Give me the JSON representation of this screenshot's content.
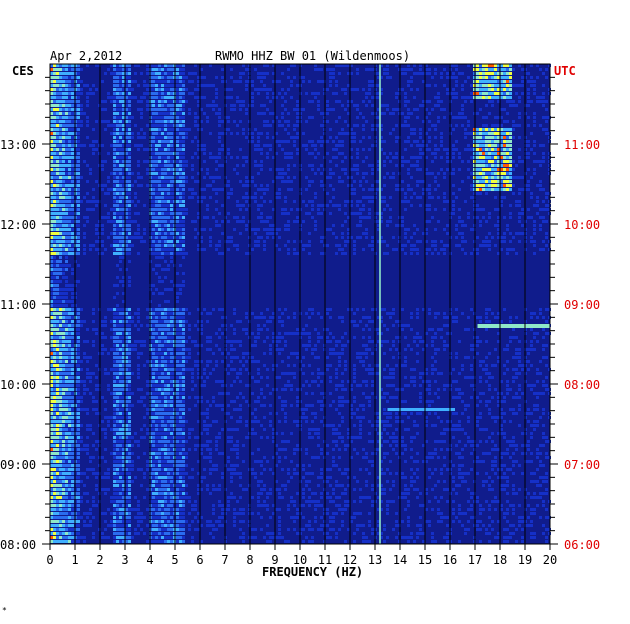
{
  "header": {
    "date": "Apr 2,2012",
    "station": "RWMO HHZ BW 01 (Wildenmoos)",
    "left_tz": "CES",
    "right_tz": "UTC"
  },
  "footer": {
    "mark": "*"
  },
  "chart_data": {
    "type": "heatmap",
    "title": "RWMO HHZ BW 01 (Wildenmoos)",
    "xlabel": "FREQUENCY (HZ)",
    "ylabel": "",
    "xlim": [
      0,
      20
    ],
    "x_ticks": [
      "0",
      "1",
      "2",
      "3",
      "4",
      "5",
      "6",
      "7",
      "8",
      "9",
      "10",
      "11",
      "12",
      "13",
      "14",
      "15",
      "16",
      "17",
      "18",
      "19",
      "20"
    ],
    "y_left_range": [
      "08:00",
      "13:50"
    ],
    "y_left_ticks": [
      "08:00",
      "09:00",
      "10:00",
      "11:00",
      "12:00",
      "13:00"
    ],
    "y_right_ticks": [
      "06:00",
      "07:00",
      "08:00",
      "09:00",
      "10:00",
      "11:00"
    ],
    "grid": "vertical lines at each 1 Hz",
    "colorscale": [
      "#0b0f88",
      "#1530c8",
      "#2a6cf0",
      "#3fb0ff",
      "#8fe8c8",
      "#f0ff40",
      "#ff5a00",
      "#b00000"
    ],
    "colors": {
      "background": "#101c8c",
      "grid": "#000000",
      "utc_label": "#e00000"
    }
  }
}
